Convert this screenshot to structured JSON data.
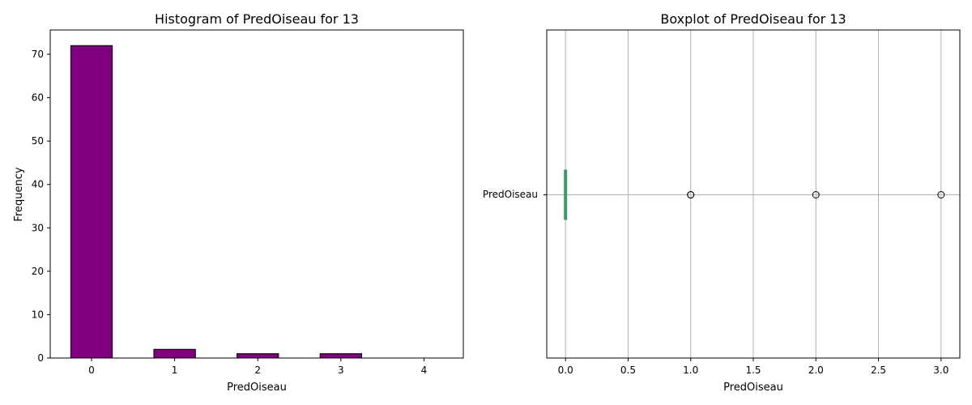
{
  "chart_data": [
    {
      "type": "bar",
      "title": "Histogram of PredOiseau for 13",
      "xlabel": "PredOiseau",
      "ylabel": "Frequency",
      "categories": [
        "0",
        "1",
        "2",
        "3",
        "4"
      ],
      "values": [
        72,
        2,
        1,
        1,
        0
      ],
      "yticks": [
        "0",
        "10",
        "20",
        "30",
        "40",
        "50",
        "60",
        "70"
      ],
      "ylim": [
        0,
        75.6
      ],
      "grid": false,
      "bar_color": "#800080",
      "edge_color": "#000000"
    },
    {
      "type": "boxplot",
      "title": "Boxplot of PredOiseau for 13",
      "xlabel": "PredOiseau",
      "category": "PredOiseau",
      "orientation": "horizontal",
      "box": {
        "min": 0,
        "q1": 0,
        "median": 0,
        "q3": 0,
        "max": 0
      },
      "outliers": [
        1,
        1,
        2,
        3
      ],
      "xticks": [
        "0.0",
        "0.5",
        "1.0",
        "1.5",
        "2.0",
        "2.5",
        "3.0"
      ],
      "xlim": [
        -0.15,
        3.15
      ],
      "grid": true,
      "box_color": "#3a9a6a",
      "outlier_color": "#000000"
    }
  ]
}
